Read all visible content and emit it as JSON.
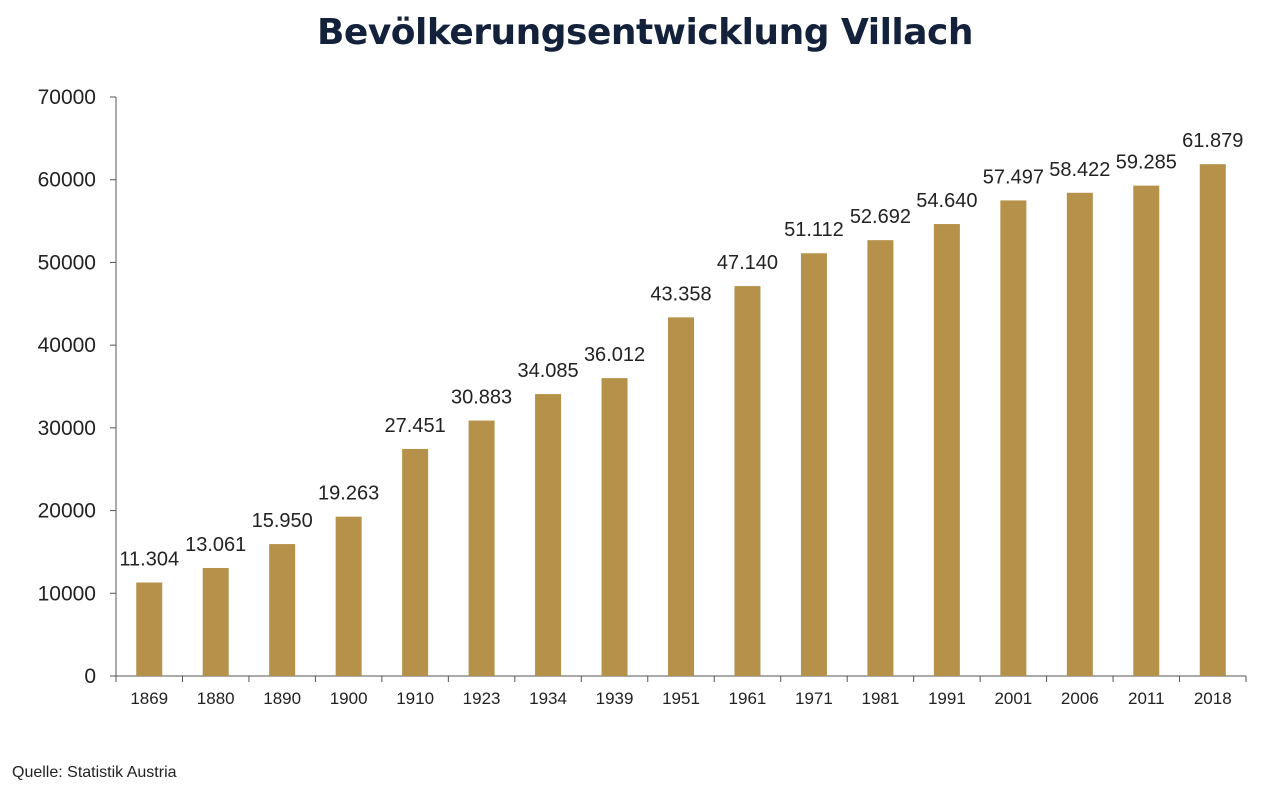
{
  "title": "Bevölkerungsentwicklung Villach",
  "source": "Quelle: Statistik Austria",
  "colors": {
    "bar": "#b5914a",
    "axis": "#555555",
    "text": "#222222",
    "title": "#14213a"
  },
  "chart_data": {
    "type": "bar",
    "title": "Bevölkerungsentwicklung Villach",
    "xlabel": "",
    "ylabel": "",
    "categories": [
      "1869",
      "1880",
      "1890",
      "1900",
      "1910",
      "1923",
      "1934",
      "1939",
      "1951",
      "1961",
      "1971",
      "1981",
      "1991",
      "2001",
      "2006",
      "2011",
      "2018"
    ],
    "values": [
      11304,
      13061,
      15950,
      19263,
      27451,
      30883,
      34085,
      36012,
      43358,
      47140,
      51112,
      52692,
      54640,
      57497,
      58422,
      59285,
      61879
    ],
    "value_labels": [
      "11.304",
      "13.061",
      "15.950",
      "19.263",
      "27.451",
      "30.883",
      "34.085",
      "36.012",
      "43.358",
      "47.140",
      "51.112",
      "52.692",
      "54.640",
      "57.497",
      "58.422",
      "59.285",
      "61.879"
    ],
    "ylim": [
      0,
      70000
    ],
    "yticks": [
      0,
      10000,
      20000,
      30000,
      40000,
      50000,
      60000,
      70000
    ],
    "grid": false,
    "legend": "none"
  }
}
